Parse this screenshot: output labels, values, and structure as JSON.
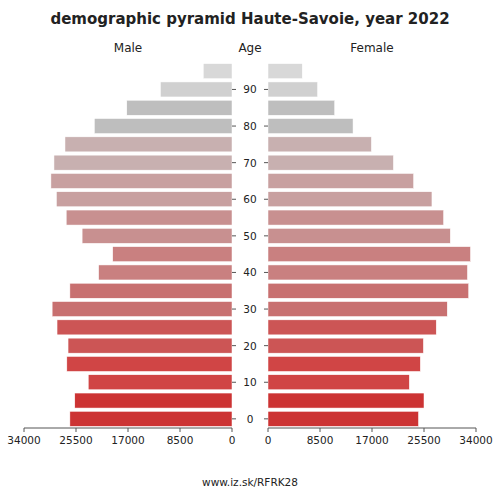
{
  "chart_data": {
    "type": "pyramid",
    "title": "demographic pyramid Haute-Savoie, year 2022",
    "y_label": "Age",
    "annotations": [
      "www.iz.sk/RFRK28"
    ],
    "categories": [
      "0",
      null,
      "10",
      null,
      "20",
      null,
      "30",
      null,
      "40",
      null,
      "50",
      null,
      "60",
      null,
      "70",
      null,
      "80",
      null,
      "90",
      null
    ],
    "series": [
      {
        "name": "Male",
        "values": [
          26500,
          25700,
          23500,
          27000,
          26800,
          28600,
          29400,
          26500,
          21800,
          19500,
          24500,
          27100,
          28700,
          29600,
          29100,
          27300,
          22500,
          17200,
          11700,
          4700
        ],
        "colors": [
          "#cc3333",
          "#cc3333",
          "#d04545",
          "#d04545",
          "#cc5555",
          "#cc5555",
          "#c87070",
          "#c87070",
          "#c98080",
          "#c98080",
          "#c89090",
          "#c89090",
          "#c8a0a0",
          "#c8a0a0",
          "#c8b0b0",
          "#c8b0b0",
          "#bebebe",
          "#bebebe",
          "#d0d0d0",
          "#d8d8d8"
        ]
      },
      {
        "name": "Female",
        "values": [
          24600,
          25500,
          23100,
          24900,
          25400,
          27500,
          29300,
          32800,
          32600,
          33100,
          29800,
          28700,
          26800,
          23800,
          20500,
          16900,
          13900,
          10900,
          8100,
          5600
        ],
        "colors": [
          "#cc3333",
          "#cc3333",
          "#d04545",
          "#d04545",
          "#cc5555",
          "#cc5555",
          "#c87070",
          "#c87070",
          "#c98080",
          "#c98080",
          "#c89090",
          "#c89090",
          "#c8a0a0",
          "#c8a0a0",
          "#c8b0b0",
          "#c8b0b0",
          "#bebebe",
          "#bebebe",
          "#d0d0d0",
          "#d8d8d8"
        ]
      }
    ],
    "xlim": [
      0,
      34000
    ],
    "xticks": [
      0,
      8500,
      17000,
      25500,
      34000
    ],
    "grid": false
  }
}
